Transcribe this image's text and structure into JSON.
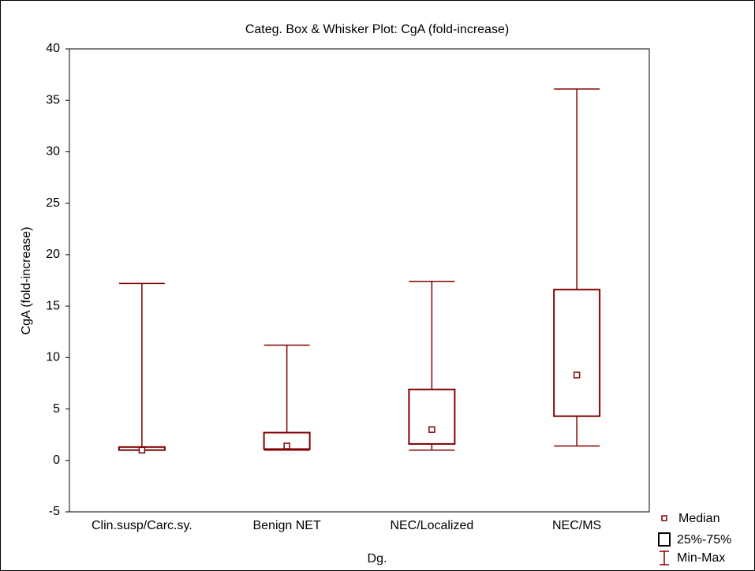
{
  "chart_data": {
    "type": "box",
    "title": "Categ. Box & Whisker Plot: CgA (fold-increase)",
    "x_label": "Dg.",
    "y_label": "CgA (fold-increase)",
    "categories": [
      "Clin.susp/Carc.sy.",
      "Benign NET",
      "NEC/Localized",
      "NEC/MS"
    ],
    "min": [
      1.0,
      1.0,
      1.0,
      1.4
    ],
    "q1": [
      1.0,
      1.1,
      1.6,
      4.3
    ],
    "median": [
      1.0,
      1.4,
      3.0,
      8.3
    ],
    "q3": [
      1.3,
      2.7,
      6.9,
      16.6
    ],
    "max": [
      17.2,
      11.2,
      17.4,
      36.1
    ],
    "color": "#800000",
    "ylim": [
      -5,
      40
    ],
    "yticks": [
      -5,
      0,
      5,
      10,
      15,
      20,
      25,
      30,
      35,
      40
    ],
    "grid": false,
    "legend": {
      "median": "Median",
      "box": "25%-75%",
      "whisker": "Min-Max"
    }
  }
}
